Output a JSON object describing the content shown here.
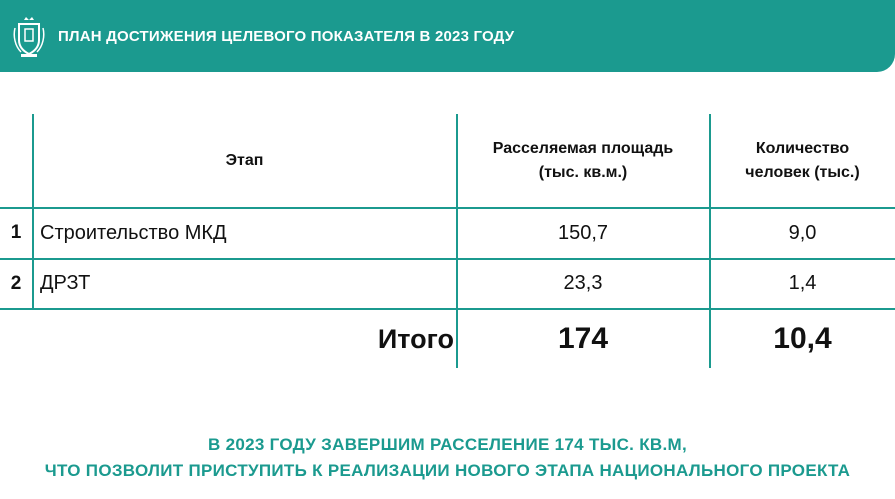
{
  "header": {
    "title": "ПЛАН ДОСТИЖЕНИЯ ЦЕЛЕВОГО ПОКАЗАТЕЛЯ В 2023 ГОДУ",
    "background_color": "#1b9a8f",
    "logo_icon": "coat-of-arms-icon"
  },
  "table": {
    "columns": {
      "stage": "Этап",
      "area_line1": "Расселяемая площадь",
      "area_line2": "(тыс. кв.м.)",
      "people_line1": "Количество",
      "people_line2": "человек (тыс.)"
    },
    "rows": [
      {
        "num": "1",
        "stage": "Строительство МКД",
        "area": "150,7",
        "people": "9,0"
      },
      {
        "num": "2",
        "stage": "ДРЗТ",
        "area": "23,3",
        "people": "1,4"
      }
    ],
    "total": {
      "label": "Итого",
      "area": "174",
      "people": "10,4"
    }
  },
  "footer": {
    "line1": "В 2023 ГОДУ ЗАВЕРШИМ РАССЕЛЕНИЕ 174 ТЫС. КВ.М,",
    "line2": "ЧТО ПОЗВОЛИТ ПРИСТУПИТЬ К РЕАЛИЗАЦИИ НОВОГО ЭТАПА НАЦИОНАЛЬНОГО ПРОЕКТА",
    "color": "#1b9a8f"
  }
}
